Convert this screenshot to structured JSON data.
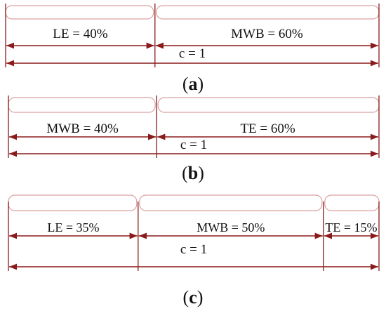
{
  "colors": {
    "section_outline": "#d9a0a0",
    "dimension_line": "#8b1a1a",
    "text": "#111111"
  },
  "panels": [
    {
      "segments": [
        {
          "label": "LE = 40%",
          "fraction": 0.4
        },
        {
          "label": "MWB = 60%",
          "fraction": 0.6
        }
      ],
      "total_label": "c = 1",
      "caption_open": "(",
      "caption_letter": "a",
      "caption_close": ")"
    },
    {
      "segments": [
        {
          "label": "MWB = 40%",
          "fraction": 0.4
        },
        {
          "label": "TE = 60%",
          "fraction": 0.6
        }
      ],
      "total_label": "c = 1",
      "caption_open": "(",
      "caption_letter": "b",
      "caption_close": ")"
    },
    {
      "segments": [
        {
          "label": "LE = 35%",
          "fraction": 0.35
        },
        {
          "label": "MWB = 50%",
          "fraction": 0.5
        },
        {
          "label": "TE = 15%",
          "fraction": 0.15
        }
      ],
      "total_label": "c = 1",
      "caption_open": "(",
      "caption_letter": "c",
      "caption_close": ")"
    }
  ]
}
